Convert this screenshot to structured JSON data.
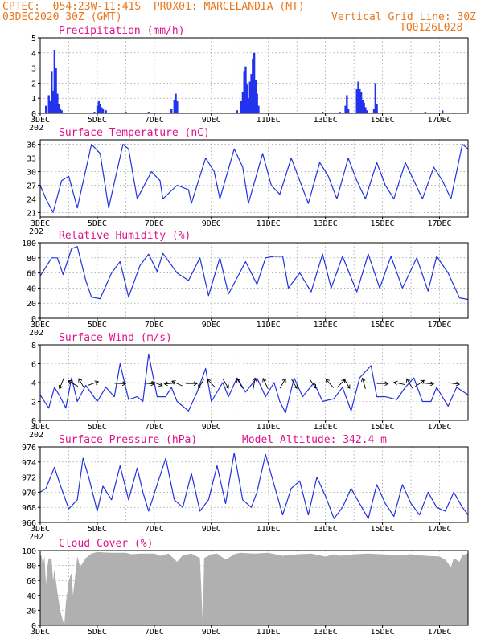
{
  "header": {
    "line1": "CPTEC:  054:23W-11:41S  PROX01: MARCELANDIA (MT)",
    "line2_left": "03DEC2020 30Z (GMT)",
    "line2_right": "Vertical Grid Line: 30Z",
    "line3_right": "TQ0126L028"
  },
  "colors": {
    "header": "#e8781f",
    "title": "#e0108a",
    "line": "#2233dd",
    "bar": "#2233ee",
    "cloud": "#b0b0b0",
    "grid": "#888888"
  },
  "x_labels": [
    "3DEC",
    "5DEC",
    "7DEC",
    "9DEC",
    "11DEC",
    "13DEC",
    "15DEC",
    "17DEC"
  ],
  "cut_label": "202",
  "chart_data": [
    {
      "type": "bar",
      "title": "Precipitation (mm/h)",
      "ylim": [
        0,
        5
      ],
      "yticks": [
        0,
        1,
        2,
        3,
        4,
        5
      ],
      "grid": true,
      "day_start": 3,
      "values": [
        [
          3.2,
          0.5
        ],
        [
          3.3,
          1.2
        ],
        [
          3.35,
          0.8
        ],
        [
          3.4,
          2.8
        ],
        [
          3.45,
          1.5
        ],
        [
          3.5,
          4.2
        ],
        [
          3.55,
          3.0
        ],
        [
          3.6,
          1.3
        ],
        [
          3.65,
          0.6
        ],
        [
          3.7,
          0.3
        ],
        [
          3.75,
          0.2
        ],
        [
          4.9,
          0.1
        ],
        [
          5.0,
          0.5
        ],
        [
          5.05,
          0.8
        ],
        [
          5.1,
          0.6
        ],
        [
          5.15,
          0.4
        ],
        [
          5.2,
          0.3
        ],
        [
          5.3,
          0.2
        ],
        [
          6.0,
          0.1
        ],
        [
          6.8,
          0.1
        ],
        [
          7.6,
          0.3
        ],
        [
          7.7,
          0.9
        ],
        [
          7.75,
          1.3
        ],
        [
          7.8,
          0.8
        ],
        [
          9.9,
          0.2
        ],
        [
          10.05,
          0.8
        ],
        [
          10.1,
          1.4
        ],
        [
          10.15,
          2.8
        ],
        [
          10.2,
          3.1
        ],
        [
          10.25,
          1.9
        ],
        [
          10.3,
          1.0
        ],
        [
          10.35,
          2.1
        ],
        [
          10.4,
          2.6
        ],
        [
          10.45,
          3.6
        ],
        [
          10.5,
          4.0
        ],
        [
          10.55,
          2.2
        ],
        [
          10.6,
          1.3
        ],
        [
          10.65,
          0.5
        ],
        [
          12.9,
          0.1
        ],
        [
          13.5,
          0.1
        ],
        [
          13.7,
          0.5
        ],
        [
          13.75,
          1.2
        ],
        [
          13.8,
          0.3
        ],
        [
          14.1,
          1.6
        ],
        [
          14.15,
          2.1
        ],
        [
          14.2,
          1.6
        ],
        [
          14.25,
          1.4
        ],
        [
          14.3,
          0.9
        ],
        [
          14.35,
          0.7
        ],
        [
          14.4,
          0.4
        ],
        [
          14.45,
          0.2
        ],
        [
          14.7,
          0.3
        ],
        [
          14.75,
          2.0
        ],
        [
          14.8,
          0.6
        ],
        [
          16.5,
          0.1
        ],
        [
          17.1,
          0.2
        ]
      ]
    },
    {
      "type": "line",
      "title": "Surface Temperature (nC)",
      "ylim": [
        20,
        37
      ],
      "yticks": [
        21,
        24,
        27,
        30,
        33,
        36
      ],
      "grid": true,
      "day_start": 3,
      "values": [
        [
          3.0,
          27
        ],
        [
          3.2,
          24
        ],
        [
          3.45,
          21
        ],
        [
          3.75,
          28
        ],
        [
          4.0,
          29
        ],
        [
          4.3,
          22
        ],
        [
          4.8,
          36
        ],
        [
          5.1,
          34
        ],
        [
          5.4,
          22
        ],
        [
          5.9,
          36
        ],
        [
          6.1,
          35
        ],
        [
          6.4,
          24
        ],
        [
          6.9,
          30
        ],
        [
          7.2,
          28
        ],
        [
          7.3,
          24
        ],
        [
          7.8,
          27
        ],
        [
          8.2,
          26
        ],
        [
          8.3,
          23
        ],
        [
          8.8,
          33
        ],
        [
          9.1,
          30
        ],
        [
          9.3,
          24
        ],
        [
          9.8,
          35
        ],
        [
          10.1,
          31
        ],
        [
          10.3,
          23
        ],
        [
          10.8,
          34
        ],
        [
          11.1,
          27
        ],
        [
          11.4,
          25
        ],
        [
          11.8,
          33
        ],
        [
          12.1,
          28
        ],
        [
          12.4,
          23
        ],
        [
          12.8,
          32
        ],
        [
          13.1,
          29
        ],
        [
          13.4,
          24
        ],
        [
          13.8,
          33
        ],
        [
          14.1,
          28
        ],
        [
          14.4,
          24
        ],
        [
          14.8,
          32
        ],
        [
          15.1,
          27
        ],
        [
          15.4,
          24
        ],
        [
          15.8,
          32
        ],
        [
          16.1,
          28
        ],
        [
          16.4,
          24
        ],
        [
          16.8,
          31
        ],
        [
          17.1,
          28
        ],
        [
          17.4,
          24
        ],
        [
          17.8,
          36
        ],
        [
          18.0,
          35
        ]
      ]
    },
    {
      "type": "line",
      "title": "Relative Humidity (%)",
      "ylim": [
        0,
        100
      ],
      "yticks": [
        0,
        20,
        40,
        60,
        80,
        100
      ],
      "grid": true,
      "day_start": 3,
      "values": [
        [
          3.0,
          56
        ],
        [
          3.4,
          80
        ],
        [
          3.6,
          80
        ],
        [
          3.8,
          58
        ],
        [
          4.1,
          92
        ],
        [
          4.3,
          95
        ],
        [
          4.6,
          50
        ],
        [
          4.8,
          28
        ],
        [
          5.1,
          26
        ],
        [
          5.5,
          60
        ],
        [
          5.8,
          75
        ],
        [
          6.1,
          28
        ],
        [
          6.5,
          70
        ],
        [
          6.8,
          85
        ],
        [
          7.1,
          62
        ],
        [
          7.3,
          86
        ],
        [
          7.8,
          60
        ],
        [
          8.2,
          50
        ],
        [
          8.6,
          80
        ],
        [
          8.9,
          30
        ],
        [
          9.3,
          80
        ],
        [
          9.6,
          32
        ],
        [
          10.2,
          75
        ],
        [
          10.6,
          45
        ],
        [
          10.9,
          80
        ],
        [
          11.2,
          82
        ],
        [
          11.5,
          82
        ],
        [
          11.7,
          40
        ],
        [
          12.1,
          60
        ],
        [
          12.5,
          35
        ],
        [
          12.9,
          85
        ],
        [
          13.2,
          40
        ],
        [
          13.6,
          82
        ],
        [
          14.1,
          35
        ],
        [
          14.5,
          85
        ],
        [
          14.9,
          40
        ],
        [
          15.3,
          82
        ],
        [
          15.7,
          40
        ],
        [
          16.2,
          80
        ],
        [
          16.6,
          36
        ],
        [
          16.9,
          82
        ],
        [
          17.3,
          60
        ],
        [
          17.7,
          27
        ],
        [
          18.0,
          25
        ]
      ]
    },
    {
      "type": "line",
      "title": "Surface Wind (m/s)",
      "ylim": [
        0,
        8
      ],
      "yticks": [
        0,
        2,
        4,
        6,
        8
      ],
      "grid": true,
      "day_start": 3,
      "values": [
        [
          3.0,
          2.7
        ],
        [
          3.3,
          1.3
        ],
        [
          3.5,
          3.5
        ],
        [
          3.7,
          2.5
        ],
        [
          3.9,
          1.3
        ],
        [
          4.1,
          4.5
        ],
        [
          4.3,
          2.0
        ],
        [
          4.6,
          3.7
        ],
        [
          5.0,
          2.0
        ],
        [
          5.3,
          3.5
        ],
        [
          5.6,
          2.5
        ],
        [
          5.8,
          6.0
        ],
        [
          6.1,
          2.2
        ],
        [
          6.4,
          2.5
        ],
        [
          6.6,
          2.0
        ],
        [
          6.8,
          7.0
        ],
        [
          7.1,
          2.5
        ],
        [
          7.4,
          2.5
        ],
        [
          7.6,
          3.5
        ],
        [
          7.8,
          2.0
        ],
        [
          8.2,
          1.0
        ],
        [
          8.5,
          3.0
        ],
        [
          8.8,
          5.5
        ],
        [
          9.0,
          2.0
        ],
        [
          9.4,
          4.0
        ],
        [
          9.6,
          2.5
        ],
        [
          9.9,
          4.5
        ],
        [
          10.2,
          3.0
        ],
        [
          10.6,
          4.5
        ],
        [
          10.9,
          2.5
        ],
        [
          11.2,
          4.0
        ],
        [
          11.4,
          2.0
        ],
        [
          11.6,
          0.8
        ],
        [
          11.9,
          4.5
        ],
        [
          12.2,
          2.5
        ],
        [
          12.6,
          4.0
        ],
        [
          12.9,
          2.0
        ],
        [
          13.3,
          2.3
        ],
        [
          13.6,
          3.5
        ],
        [
          13.9,
          1.0
        ],
        [
          14.2,
          4.5
        ],
        [
          14.6,
          5.8
        ],
        [
          14.8,
          2.5
        ],
        [
          15.1,
          2.5
        ],
        [
          15.5,
          2.2
        ],
        [
          15.8,
          3.5
        ],
        [
          16.1,
          4.5
        ],
        [
          16.4,
          2.0
        ],
        [
          16.7,
          2.0
        ],
        [
          16.9,
          3.5
        ],
        [
          17.3,
          1.5
        ],
        [
          17.6,
          3.5
        ],
        [
          18.0,
          2.7
        ]
      ],
      "arrows": [
        [
          3.75,
          202
        ],
        [
          4.15,
          300
        ],
        [
          4.45,
          330
        ],
        [
          4.85,
          70
        ],
        [
          5.8,
          92
        ],
        [
          6.8,
          95
        ],
        [
          7.1,
          112
        ],
        [
          7.55,
          265
        ],
        [
          7.8,
          295
        ],
        [
          8.3,
          90
        ],
        [
          8.65,
          210
        ],
        [
          9.0,
          315
        ],
        [
          9.5,
          150
        ],
        [
          10.0,
          330
        ],
        [
          10.5,
          10
        ],
        [
          10.9,
          335
        ],
        [
          11.5,
          30
        ],
        [
          11.9,
          150
        ],
        [
          12.55,
          145
        ],
        [
          13.15,
          318
        ],
        [
          13.55,
          45
        ],
        [
          13.75,
          150
        ],
        [
          14.35,
          345
        ],
        [
          15.0,
          90
        ],
        [
          15.6,
          282
        ],
        [
          15.95,
          330
        ],
        [
          16.3,
          55
        ],
        [
          16.6,
          95
        ],
        [
          17.5,
          98
        ]
      ]
    },
    {
      "type": "line",
      "title": "Surface Pressure (hPa)",
      "annotation": "Model Altitude: 342.4  m",
      "ylim": [
        966,
        976
      ],
      "yticks": [
        966,
        968,
        970,
        972,
        974,
        976
      ],
      "grid": true,
      "day_start": 3,
      "values": [
        [
          3.0,
          970
        ],
        [
          3.2,
          970.5
        ],
        [
          3.5,
          973.3
        ],
        [
          3.7,
          971
        ],
        [
          4.0,
          967.8
        ],
        [
          4.3,
          969
        ],
        [
          4.5,
          974.5
        ],
        [
          4.7,
          972
        ],
        [
          5.0,
          967.5
        ],
        [
          5.2,
          970.8
        ],
        [
          5.5,
          969
        ],
        [
          5.8,
          973.5
        ],
        [
          6.1,
          969
        ],
        [
          6.4,
          973.2
        ],
        [
          6.6,
          970
        ],
        [
          6.8,
          967.5
        ],
        [
          7.1,
          971
        ],
        [
          7.4,
          974.5
        ],
        [
          7.7,
          969
        ],
        [
          8.0,
          968
        ],
        [
          8.3,
          972.5
        ],
        [
          8.6,
          967.5
        ],
        [
          8.9,
          969
        ],
        [
          9.2,
          973.5
        ],
        [
          9.5,
          968.5
        ],
        [
          9.8,
          975.2
        ],
        [
          10.1,
          969
        ],
        [
          10.4,
          968
        ],
        [
          10.6,
          970
        ],
        [
          10.9,
          975
        ],
        [
          11.2,
          971
        ],
        [
          11.5,
          967
        ],
        [
          11.8,
          970.5
        ],
        [
          12.1,
          971.5
        ],
        [
          12.4,
          967
        ],
        [
          12.7,
          972
        ],
        [
          13.0,
          969.5
        ],
        [
          13.3,
          966.5
        ],
        [
          13.6,
          968
        ],
        [
          13.9,
          970.5
        ],
        [
          14.2,
          968.5
        ],
        [
          14.5,
          966.5
        ],
        [
          14.8,
          971
        ],
        [
          15.1,
          968.5
        ],
        [
          15.4,
          966.8
        ],
        [
          15.7,
          971
        ],
        [
          16.0,
          968.5
        ],
        [
          16.3,
          967
        ],
        [
          16.6,
          970
        ],
        [
          16.9,
          968
        ],
        [
          17.2,
          967.5
        ],
        [
          17.5,
          970
        ],
        [
          17.8,
          968
        ],
        [
          18.0,
          967
        ]
      ]
    },
    {
      "type": "area",
      "title": "Cloud Cover (%)",
      "ylim": [
        0,
        100
      ],
      "yticks": [
        0,
        20,
        40,
        60,
        80,
        100
      ],
      "grid": true,
      "day_start": 3,
      "values": [
        [
          3.0,
          95
        ],
        [
          3.05,
          92
        ],
        [
          3.1,
          80
        ],
        [
          3.15,
          93
        ],
        [
          3.2,
          55
        ],
        [
          3.25,
          78
        ],
        [
          3.3,
          90
        ],
        [
          3.4,
          88
        ],
        [
          3.45,
          60
        ],
        [
          3.5,
          75
        ],
        [
          3.6,
          45
        ],
        [
          3.7,
          20
        ],
        [
          3.8,
          5
        ],
        [
          3.85,
          2
        ],
        [
          3.9,
          30
        ],
        [
          4.0,
          60
        ],
        [
          4.1,
          70
        ],
        [
          4.15,
          40
        ],
        [
          4.3,
          92
        ],
        [
          4.4,
          78
        ],
        [
          4.6,
          90
        ],
        [
          4.8,
          96
        ],
        [
          5.0,
          98
        ],
        [
          5.5,
          97
        ],
        [
          6.0,
          97
        ],
        [
          6.2,
          95
        ],
        [
          6.5,
          96
        ],
        [
          7.0,
          96
        ],
        [
          7.2,
          93
        ],
        [
          7.5,
          96
        ],
        [
          7.8,
          85
        ],
        [
          8.0,
          94
        ],
        [
          8.3,
          96
        ],
        [
          8.6,
          90
        ],
        [
          8.7,
          2
        ],
        [
          8.75,
          90
        ],
        [
          9.0,
          95
        ],
        [
          9.2,
          96
        ],
        [
          9.5,
          88
        ],
        [
          9.8,
          95
        ],
        [
          10.0,
          97
        ],
        [
          10.5,
          96
        ],
        [
          11.0,
          97
        ],
        [
          11.5,
          93
        ],
        [
          12.0,
          95
        ],
        [
          12.5,
          96
        ],
        [
          13.0,
          92
        ],
        [
          13.3,
          95
        ],
        [
          13.5,
          93
        ],
        [
          14.0,
          95
        ],
        [
          14.5,
          96
        ],
        [
          15.0,
          95
        ],
        [
          15.5,
          94
        ],
        [
          16.0,
          95
        ],
        [
          16.5,
          93
        ],
        [
          17.0,
          92
        ],
        [
          17.2,
          88
        ],
        [
          17.4,
          78
        ],
        [
          17.5,
          90
        ],
        [
          17.7,
          85
        ],
        [
          17.8,
          94
        ],
        [
          18.0,
          96
        ]
      ]
    }
  ]
}
